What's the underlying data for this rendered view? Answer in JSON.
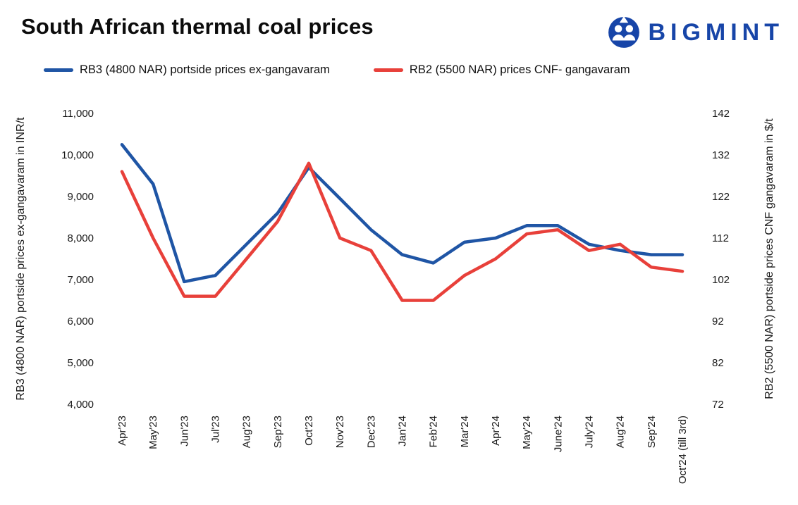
{
  "header": {
    "title": "South African thermal coal prices",
    "logo_text": "BIGMINT"
  },
  "chart_data": {
    "type": "line",
    "categories": [
      "Apr'23",
      "May'23",
      "Jun'23",
      "Jul'23",
      "Aug'23",
      "Sep'23",
      "Oct'23",
      "Nov'23",
      "Dec'23",
      "Jan'24",
      "Feb'24",
      "Mar'24",
      "Apr'24",
      "May'24",
      "June'24",
      "July'24",
      "Aug'24",
      "Sep'24",
      "Oct'24 (till 3rd)"
    ],
    "series": [
      {
        "name": "RB3 (4800 NAR) portside prices ex-gangavaram",
        "axis": "left",
        "color": "#1f55a5",
        "values": [
          10250,
          9300,
          6950,
          7100,
          7850,
          8600,
          9700,
          8950,
          8200,
          7600,
          7400,
          7900,
          8000,
          8300,
          8300,
          7850,
          7700,
          7600,
          7600
        ]
      },
      {
        "name": "RB2 (5500 NAR) prices CNF- gangavaram",
        "axis": "right",
        "color": "#e8403a",
        "values": [
          128,
          112,
          98,
          98,
          107,
          116,
          130,
          112,
          109,
          97,
          97,
          103,
          107,
          113,
          114,
          109,
          110.5,
          105,
          104
        ]
      }
    ],
    "left_axis": {
      "title": "RB3 (4800 NAR) portside prices ex-gangavaram in INR/t",
      "min": 4000,
      "max": 11000,
      "tick_values": [
        4000,
        5000,
        6000,
        7000,
        8000,
        9000,
        10000,
        11000
      ],
      "tick_labels": [
        "4,000",
        "5,000",
        "6,000",
        "7,000",
        "8,000",
        "9,000",
        "10,000",
        "11,000"
      ]
    },
    "right_axis": {
      "title": "RB2 (5500 NAR) portside prices CNF gangavaram in $/t",
      "min": 72,
      "max": 142,
      "tick_values": [
        72,
        82,
        92,
        102,
        112,
        122,
        132,
        142
      ],
      "tick_labels": [
        "72",
        "82",
        "92",
        "102",
        "112",
        "122",
        "132",
        "142"
      ]
    },
    "grid": false,
    "legend_position": "top"
  }
}
